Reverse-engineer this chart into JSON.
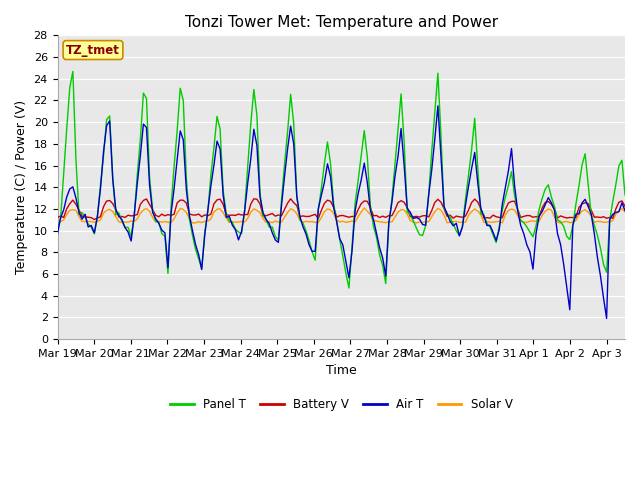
{
  "title": "Tonzi Tower Met: Temperature and Power",
  "xlabel": "Time",
  "ylabel": "Temperature (C) / Power (V)",
  "ylim": [
    0,
    28
  ],
  "xtick_labels": [
    "Mar 19",
    "Mar 20",
    "Mar 21",
    "Mar 22",
    "Mar 23",
    "Mar 24",
    "Mar 25",
    "Mar 26",
    "Mar 27",
    "Mar 28",
    "Mar 29",
    "Mar 30",
    "Mar 31",
    "Apr 1",
    "Apr 2",
    "Apr 3"
  ],
  "xtick_positions": [
    0,
    1,
    2,
    3,
    4,
    5,
    6,
    7,
    8,
    9,
    10,
    11,
    12,
    13,
    14,
    15
  ],
  "legend_label": "TZ_tmet",
  "line_colors": {
    "panel_t": "#00cc00",
    "battery_v": "#cc0000",
    "air_t": "#0000cc",
    "solar_v": "#ff9900"
  },
  "legend_entries": [
    "Panel T",
    "Battery V",
    "Air T",
    "Solar V"
  ],
  "fig_bg_color": "#ffffff",
  "plot_bg_color": "#e8e8e8",
  "grid_color": "#ffffff",
  "title_fontsize": 11,
  "axis_label_fontsize": 9,
  "tick_fontsize": 8
}
